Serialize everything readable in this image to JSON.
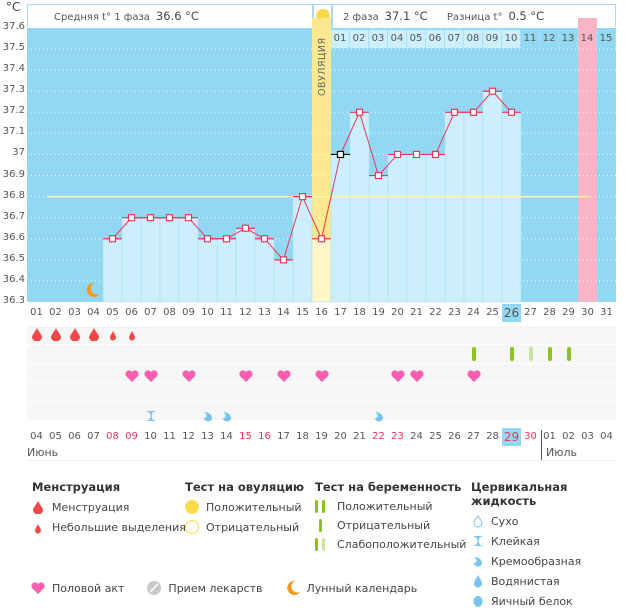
{
  "header": {
    "unit": "°C",
    "phase1_label": "Средняя t° 1 фаза",
    "phase1_value": "36.6 °C",
    "phase2_label": "2 фаза",
    "phase2_value": "37.1 °C",
    "diff_label": "Разница t°",
    "diff_value": "0.5 °C",
    "ovulation_label": "ОВУЛЯЦИЯ"
  },
  "chart_data": {
    "type": "line",
    "title": "",
    "ylabel": "°C",
    "ylim": [
      36.3,
      37.6
    ],
    "yticks": [
      "37.6",
      "37.5",
      "37.4",
      "37.3",
      "37.2",
      "37.1",
      "37",
      "36.9",
      "36.8",
      "36.7",
      "36.6",
      "36.5",
      "36.4",
      "36.3"
    ],
    "cycle_days": [
      "01",
      "02",
      "03",
      "04",
      "05",
      "06",
      "07",
      "08",
      "09",
      "10",
      "11",
      "12",
      "13",
      "14",
      "15",
      "16",
      "17",
      "18",
      "19",
      "20",
      "21",
      "22",
      "23",
      "24",
      "25",
      "26",
      "27",
      "28",
      "29",
      "30",
      "31"
    ],
    "series": [
      {
        "name": "Базальная температура",
        "values": [
          null,
          null,
          null,
          null,
          36.6,
          36.7,
          36.7,
          36.7,
          36.7,
          36.6,
          36.6,
          36.65,
          36.6,
          36.5,
          36.8,
          36.6,
          37.0,
          37.2,
          36.9,
          37.0,
          37.0,
          37.0,
          37.2,
          37.2,
          37.3,
          37.2,
          null,
          null,
          null,
          null,
          null
        ]
      }
    ],
    "coverline": 36.8,
    "ovulation_day": 16,
    "luteal_days": [
      "01",
      "02",
      "03",
      "04",
      "05",
      "06",
      "07",
      "08",
      "09",
      "10",
      "11",
      "12",
      "13",
      "14",
      "15"
    ],
    "luteal_start_day": 17,
    "expected_period_day": 30,
    "current_day": 26,
    "marked_point_day": 17,
    "moon_day": 4
  },
  "dates": {
    "values": [
      "04",
      "05",
      "06",
      "07",
      "08",
      "09",
      "10",
      "11",
      "12",
      "13",
      "14",
      "15",
      "16",
      "17",
      "18",
      "19",
      "20",
      "21",
      "22",
      "23",
      "24",
      "25",
      "26",
      "27",
      "28",
      "29",
      "30",
      "01",
      "02",
      "03",
      "04"
    ],
    "weekend": [
      4,
      5,
      11,
      12,
      18,
      19,
      25,
      26
    ],
    "today_index": 25,
    "month1": "Июнь",
    "month2": "Июль"
  },
  "rows": {
    "menstruation": {
      "heavy": [
        1,
        2,
        3,
        4
      ],
      "light": [
        5,
        6
      ]
    },
    "pregnancy_tests": {
      "positive": [
        26,
        27,
        28,
        29
      ],
      "weak": [
        28
      ]
    },
    "pregnancy_marks": [
      {
        "day": 24,
        "type": "neg"
      },
      {
        "day": 26,
        "type": "neg"
      },
      {
        "day": 27,
        "type": "weak"
      },
      {
        "day": 28,
        "type": "neg"
      },
      {
        "day": 29,
        "type": "neg"
      }
    ],
    "intercourse": [
      6,
      7,
      9,
      12,
      14,
      16,
      20,
      21,
      24
    ],
    "cervical": [
      {
        "day": 7,
        "type": "sticky"
      },
      {
        "day": 10,
        "type": "creamy"
      },
      {
        "day": 11,
        "type": "creamy"
      },
      {
        "day": 19,
        "type": "creamy"
      }
    ]
  },
  "legend": {
    "menstruation": {
      "title": "Менструация",
      "items": [
        "Менструация",
        "Небольшие выделения"
      ]
    },
    "ovulation_test": {
      "title": "Тест на овуляцию",
      "items": [
        "Положительный",
        "Отрицательный"
      ]
    },
    "pregnancy_test": {
      "title": "Тест на беременность",
      "items": [
        "Положительный",
        "Отрицательный",
        "Слабоположительный"
      ]
    },
    "cervical": {
      "title": "Цервикальная жидкость",
      "items": [
        "Сухо",
        "Клейкая",
        "Кремообразная",
        "Водянистая",
        "Яичный белок"
      ]
    },
    "bottom": [
      "Половой акт",
      "Прием лекарств",
      "Лунный календарь"
    ]
  },
  "colors": {
    "plot_bg": "#92d8f2",
    "bar": "#cdeefb",
    "line": "#e8375a",
    "ovulation": "#fbe88f",
    "period": "#f9b4c6",
    "coverline": "#fff6a8",
    "heart": "#f95fb0",
    "drop": "#f04848",
    "test_green": "#8cc21c",
    "test_weak": "#c8e39a",
    "cervical": "#79c3ee",
    "moon": "#f39a1b"
  }
}
